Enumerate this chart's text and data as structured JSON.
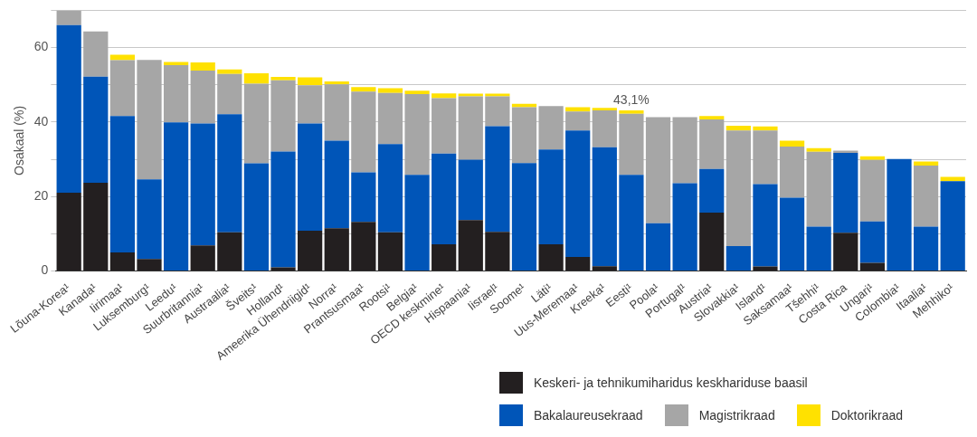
{
  "chart_data": {
    "type": "bar",
    "stacked": true,
    "ylabel": "Osakaal (%)",
    "categories": [
      "Lõuna-Korea¹",
      "Kanada¹",
      "Iirimaa¹",
      "Luksemburg¹",
      "Leedu¹",
      "Suurbritannia¹",
      "Austraalia¹",
      "Šveits¹",
      "Holland¹",
      "Ameerika Ühendriigid¹",
      "Norra¹",
      "Prantsusmaa¹",
      "Rootsi¹",
      "Belgia¹",
      "OECD keskmine¹",
      "Hispaania¹",
      "Iisrael¹",
      "Soome¹",
      "Läti¹",
      "Uus-Meremaa¹",
      "Kreeka¹",
      "Eesti¹",
      "Poola¹",
      "Portugal¹",
      "Austria¹",
      "Slovakkia¹",
      "Island¹",
      "Saksamaa¹",
      "Tšehhi¹",
      "Costa Rica",
      "Ungari¹",
      "Colombia¹",
      "Itaalia¹",
      "Mehhiko¹"
    ],
    "series": [
      {
        "name": "Keskeri- ja tehnikumiharidus keskhariduse baasil",
        "color": "#231f20",
        "values": [
          21,
          23.7,
          5,
          3.2,
          0,
          6.9,
          10.4,
          0,
          1,
          10.8,
          11.5,
          13.2,
          10.4,
          0,
          7.2,
          13.7,
          10.5,
          0,
          7.2,
          3.8,
          1.3,
          0,
          0,
          0,
          15.7,
          0,
          1.2,
          0,
          0,
          10.3,
          2.2,
          0,
          0,
          0
        ]
      },
      {
        "name": "Bakalaureusekraad",
        "color": "#0055b8",
        "values": [
          45,
          28.5,
          36.6,
          21.4,
          39.9,
          32.7,
          31.7,
          28.9,
          31.1,
          28.8,
          23.5,
          13.3,
          23.7,
          25.8,
          24.3,
          16.2,
          28.4,
          29,
          25.4,
          33.9,
          31.9,
          25.8,
          12.8,
          23.6,
          11.7,
          6.7,
          22.1,
          19.7,
          11.9,
          21.4,
          11.1,
          30.1,
          11.9,
          24.1
        ]
      },
      {
        "name": "Magistrikraad",
        "color": "#a6a6a6",
        "values": [
          4,
          12.1,
          15,
          32.1,
          15.4,
          14.2,
          10.8,
          21.4,
          19.1,
          10.3,
          15.1,
          21.7,
          13.7,
          21.7,
          14.9,
          17,
          8,
          15,
          11.7,
          5.1,
          9.9,
          16.4,
          28.5,
          17.7,
          13.3,
          31,
          14.4,
          13.7,
          20.1,
          0.6,
          16.5,
          0,
          16.4,
          0
        ]
      },
      {
        "name": "Doktorikraad",
        "color": "#ffe100",
        "values": [
          0,
          0,
          1.5,
          0,
          0.8,
          2.2,
          1.2,
          2.8,
          0.9,
          2.1,
          0.8,
          1.2,
          1.3,
          0.9,
          1.3,
          0.7,
          0.7,
          0.9,
          0,
          1.2,
          0.7,
          0.9,
          0,
          0,
          0.9,
          1.3,
          1.1,
          1.6,
          1,
          0,
          1,
          0,
          1.1,
          1.2
        ]
      }
    ],
    "ylim": [
      0,
      70
    ],
    "yticks": [
      0,
      {
        "value": 10,
        "label": null
      },
      20,
      {
        "value": 30,
        "label": null
      },
      40,
      {
        "value": 50,
        "label": null
      },
      60,
      {
        "value": 70,
        "label": null
      }
    ],
    "grid": "y",
    "legend": "bottom right",
    "annotations": [
      {
        "text": "43,1%",
        "x": "Eesti¹",
        "y": 43.1
      }
    ]
  }
}
